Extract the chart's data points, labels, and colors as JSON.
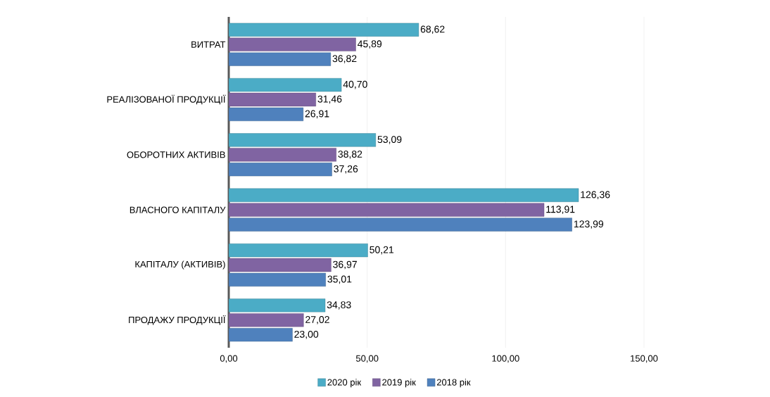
{
  "chart_data": {
    "type": "bar",
    "orientation": "horizontal",
    "categories": [
      "ВИТРАТ",
      "РЕАЛІЗОВАНОЇ  ПРОДУКЦІЇ",
      "ОБОРОТНИХ АКТИВІВ",
      "ВЛАСНОГО КАПІТАЛУ",
      "КАПІТАЛУ (АКТИВІВ)",
      "ПРОДАЖУ ПРОДУКЦІЇ"
    ],
    "series": [
      {
        "name": "2020 рік",
        "color": "#4bacc6",
        "values": [
          68.62,
          40.7,
          53.09,
          126.36,
          50.21,
          34.83
        ],
        "value_labels": [
          "68,62",
          "40,70",
          "53,09",
          "126,36",
          "50,21",
          "34,83"
        ]
      },
      {
        "name": "2019 рік",
        "color": "#8064a2",
        "values": [
          45.89,
          31.46,
          38.82,
          113.91,
          36.97,
          27.02
        ],
        "value_labels": [
          "45,89",
          "31,46",
          "38,82",
          "113,91",
          "36,97",
          "27,02"
        ]
      },
      {
        "name": "2018 рік",
        "color": "#4f81bd",
        "values": [
          36.82,
          26.91,
          37.26,
          123.99,
          35.01,
          23.0
        ],
        "value_labels": [
          "36,82",
          "26,91",
          "37,26",
          "123,99",
          "35,01",
          "23,00"
        ]
      }
    ],
    "xlim": [
      0,
      150
    ],
    "xticks": [
      {
        "value": 0,
        "label": "0,00"
      },
      {
        "value": 50,
        "label": "50,00"
      },
      {
        "value": 100,
        "label": "100,00"
      },
      {
        "value": 150,
        "label": "150,00"
      }
    ],
    "grid": "x",
    "legend": "bottom"
  }
}
